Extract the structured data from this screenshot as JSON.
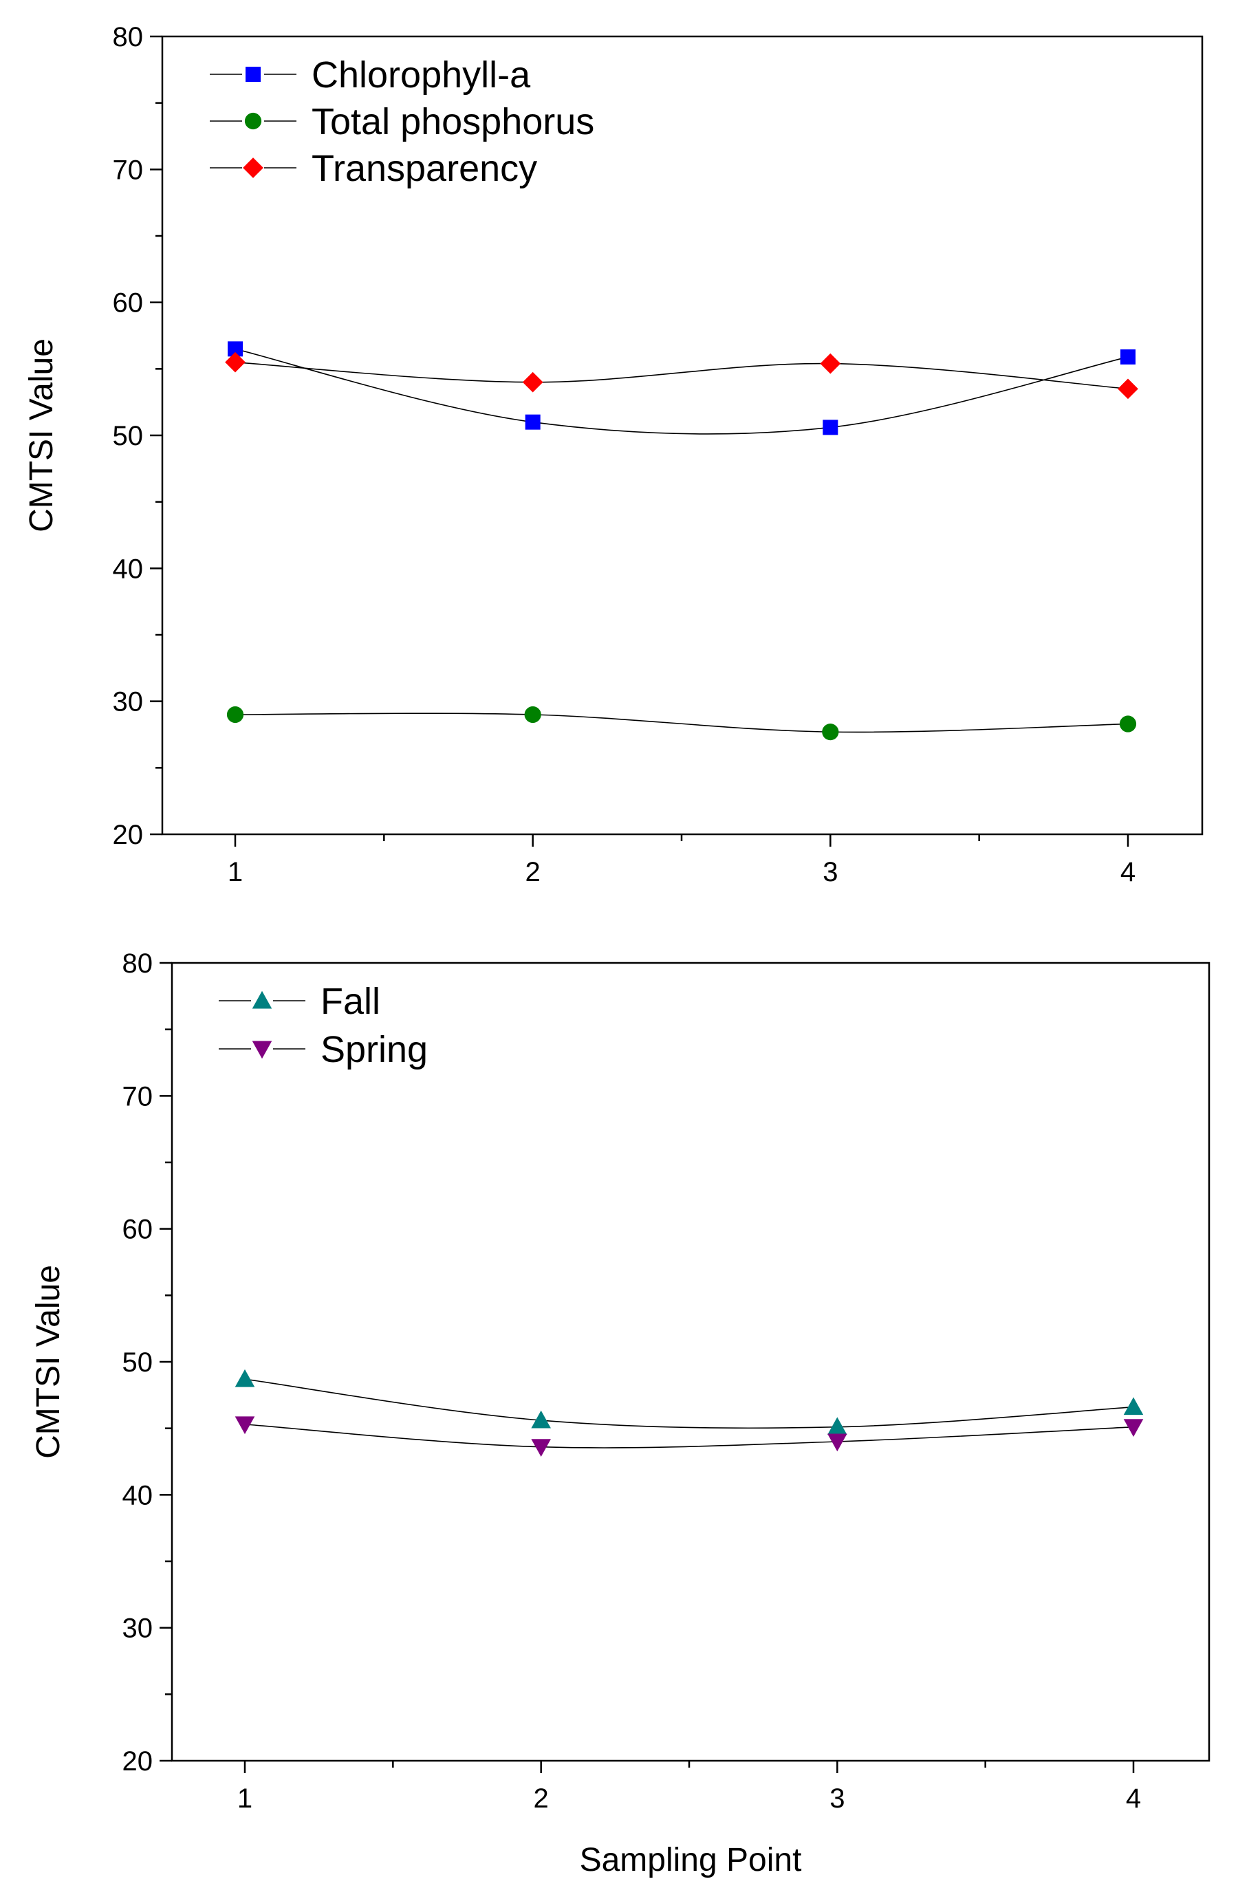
{
  "chart_data": [
    {
      "type": "line",
      "x": [
        1,
        2,
        3,
        4
      ],
      "xlabel": "",
      "ylabel": "CMTSI Value",
      "ylim": [
        20,
        80
      ],
      "xticks": [
        "1",
        "2",
        "3",
        "4"
      ],
      "yticks": [
        "20",
        "30",
        "40",
        "50",
        "60",
        "70",
        "80"
      ],
      "grid": false,
      "legend": "top-left",
      "series": [
        {
          "name": "Chlorophyll-a",
          "marker": "square",
          "color": "#0000ff",
          "values": [
            56.5,
            51.0,
            50.6,
            55.9
          ]
        },
        {
          "name": "Total phosphorus",
          "marker": "circle",
          "color": "#008000",
          "values": [
            29.0,
            29.0,
            27.7,
            28.3
          ]
        },
        {
          "name": "Transparency",
          "marker": "diamond",
          "color": "#ff0000",
          "values": [
            55.5,
            54.0,
            55.4,
            53.5
          ]
        }
      ]
    },
    {
      "type": "line",
      "x": [
        1,
        2,
        3,
        4
      ],
      "xlabel": "Sampling Point",
      "ylabel": "CMTSI Value",
      "ylim": [
        20,
        80
      ],
      "xticks": [
        "1",
        "2",
        "3",
        "4"
      ],
      "yticks": [
        "20",
        "30",
        "40",
        "50",
        "60",
        "70",
        "80"
      ],
      "grid": false,
      "legend": "top-left",
      "series": [
        {
          "name": "Fall",
          "marker": "triangle-up",
          "color": "#008080",
          "values": [
            48.7,
            45.6,
            45.1,
            46.6
          ]
        },
        {
          "name": "Spring",
          "marker": "triangle-down",
          "color": "#800080",
          "values": [
            45.3,
            43.6,
            44.0,
            45.1
          ]
        }
      ]
    }
  ]
}
